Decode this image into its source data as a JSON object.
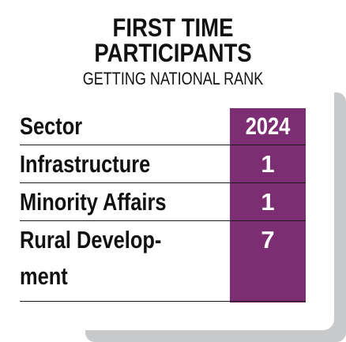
{
  "title_line1": "FIRST TIME",
  "title_line2": "PARTICIPANTS",
  "subtitle": "GETTING NATIONAL RANK",
  "table": {
    "header": {
      "label": "Sector",
      "value": "2024"
    },
    "rows": [
      {
        "label": "Infrastructure",
        "value": "1"
      },
      {
        "label": "Minority Affairs",
        "value": "1"
      },
      {
        "label_line1": "Rural Develop-",
        "label_line2": "ment",
        "value": "7"
      }
    ]
  },
  "colors": {
    "highlight": "#7d2e73",
    "shadow": "#c8c9cb",
    "text": "#111111"
  }
}
